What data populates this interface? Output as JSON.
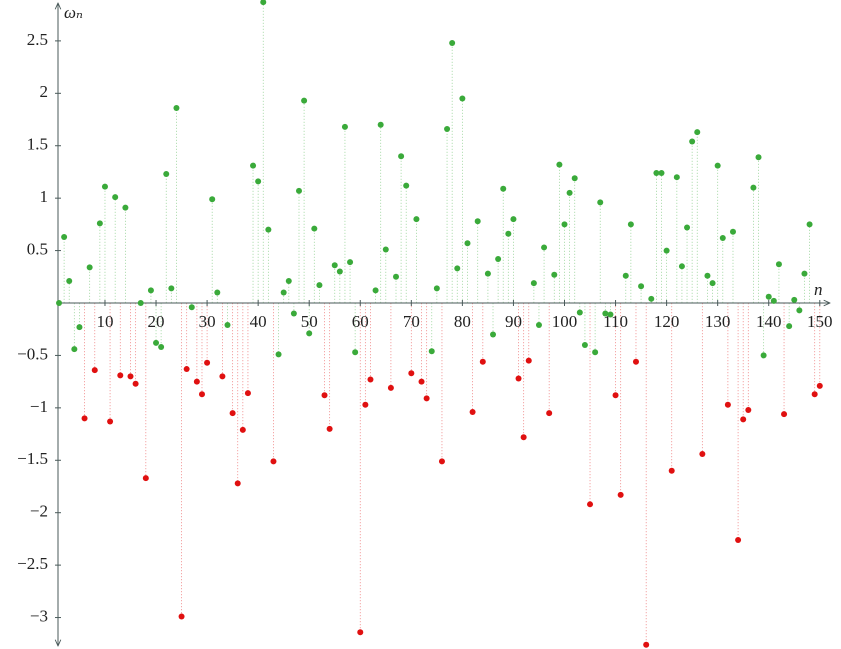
{
  "chart_data": {
    "type": "stem-scatter",
    "x_label": "n",
    "y_label": "ωₙ",
    "xlim": [
      0.8,
      152
    ],
    "ylim": [
      -3.3,
      2.89
    ],
    "xticks": [
      10,
      20,
      30,
      40,
      50,
      60,
      70,
      80,
      90,
      100,
      110,
      120,
      130,
      140,
      150
    ],
    "yticks": [
      {
        "value": -3,
        "label": "−3"
      },
      {
        "value": -2.5,
        "label": "−2.5"
      },
      {
        "value": -2,
        "label": "−2"
      },
      {
        "value": -1.5,
        "label": "−1.5"
      },
      {
        "value": -1,
        "label": "−1"
      },
      {
        "value": -0.5,
        "label": "−0.5"
      },
      0.5,
      1,
      1.5,
      2,
      2.5
    ],
    "x": [
      1,
      2,
      3,
      4,
      5,
      6,
      7,
      8,
      9,
      10,
      11,
      12,
      13,
      14,
      15,
      16,
      17,
      18,
      19,
      20,
      21,
      22,
      23,
      24,
      25,
      26,
      27,
      28,
      29,
      30,
      31,
      32,
      33,
      34,
      35,
      36,
      37,
      38,
      39,
      40,
      41,
      42,
      43,
      44,
      45,
      46,
      47,
      48,
      49,
      50,
      51,
      52,
      53,
      54,
      55,
      56,
      57,
      58,
      59,
      60,
      61,
      62,
      63,
      64,
      65,
      66,
      67,
      68,
      69,
      70,
      71,
      72,
      73,
      74,
      75,
      76,
      77,
      78,
      79,
      80,
      81,
      82,
      83,
      84,
      85,
      86,
      87,
      88,
      89,
      90,
      91,
      92,
      93,
      94,
      95,
      96,
      97,
      98,
      99,
      100,
      101,
      102,
      103,
      104,
      105,
      106,
      107,
      108,
      109,
      110,
      111,
      112,
      113,
      114,
      115,
      116,
      117,
      118,
      119,
      120,
      121,
      122,
      123,
      124,
      125,
      126,
      127,
      128,
      129,
      130,
      131,
      132,
      133,
      134,
      135,
      136,
      137,
      138,
      139,
      140,
      141,
      142,
      143,
      144,
      145,
      146,
      147,
      148,
      149,
      150
    ],
    "series": [
      {
        "color": "#3aaa3a",
        "values": [
          0,
          0.63,
          0.21,
          -0.44,
          -0.23,
          null,
          0.34,
          null,
          0.76,
          1.11,
          null,
          1.01,
          null,
          0.91,
          null,
          null,
          0,
          null,
          0.12,
          -0.38,
          -0.42,
          1.23,
          0.14,
          1.86,
          null,
          null,
          -0.04,
          null,
          null,
          null,
          0.99,
          0.1,
          null,
          -0.21,
          null,
          null,
          null,
          null,
          1.31,
          1.16,
          2.87,
          0.7,
          null,
          -0.49,
          0.1,
          0.21,
          -0.1,
          1.07,
          1.93,
          -0.29,
          0.71,
          0.17,
          null,
          null,
          0.36,
          0.3,
          1.68,
          0.39,
          -0.47,
          null,
          null,
          null,
          0.12,
          1.7,
          0.51,
          null,
          0.25,
          1.4,
          1.12,
          null,
          0.8,
          null,
          null,
          -0.46,
          0.14,
          null,
          1.66,
          2.48,
          0.33,
          1.95,
          0.57,
          null,
          0.78,
          null,
          0.28,
          -0.3,
          0.42,
          1.09,
          0.66,
          0.8,
          null,
          null,
          null,
          0.19,
          -0.21,
          0.53,
          null,
          0.27,
          1.32,
          0.75,
          1.05,
          1.19,
          -0.09,
          -0.4,
          null,
          -0.47,
          0.96,
          -0.1,
          -0.11,
          null,
          null,
          0.26,
          0.75,
          null,
          0.16,
          null,
          0.04,
          1.24,
          1.24,
          0.5,
          null,
          1.2,
          0.35,
          0.72,
          1.54,
          1.63,
          null,
          0.26,
          0.19,
          1.31,
          0.62,
          null,
          0.68,
          null,
          null,
          null,
          1.1,
          1.39,
          -0.5,
          0.06,
          0.02,
          0.37,
          null,
          -0.22,
          0.03,
          -0.07,
          0.28,
          0.75,
          null,
          null
        ]
      },
      {
        "color": "#e01010",
        "values": [
          null,
          null,
          null,
          null,
          null,
          -1.1,
          null,
          -0.64,
          null,
          null,
          -1.13,
          null,
          -0.69,
          null,
          -0.7,
          -0.77,
          null,
          -1.67,
          null,
          null,
          null,
          null,
          null,
          null,
          -2.99,
          -0.63,
          null,
          -0.75,
          -0.87,
          -0.57,
          null,
          null,
          -0.7,
          null,
          -1.05,
          -1.72,
          -1.21,
          -0.86,
          null,
          null,
          null,
          null,
          -1.51,
          null,
          null,
          null,
          null,
          null,
          null,
          null,
          null,
          null,
          -0.88,
          -1.2,
          null,
          null,
          null,
          null,
          null,
          -3.14,
          -0.97,
          -0.73,
          null,
          null,
          null,
          -0.81,
          null,
          null,
          null,
          -0.67,
          null,
          -0.75,
          -0.91,
          null,
          null,
          -1.51,
          null,
          null,
          null,
          null,
          null,
          -1.04,
          null,
          -0.56,
          null,
          null,
          null,
          null,
          null,
          null,
          -0.72,
          -1.28,
          -0.55,
          null,
          null,
          null,
          -1.05,
          null,
          null,
          null,
          null,
          null,
          null,
          null,
          -1.92,
          null,
          null,
          null,
          null,
          -0.88,
          -1.83,
          null,
          null,
          -0.56,
          null,
          -3.26,
          null,
          null,
          null,
          null,
          -1.6,
          null,
          null,
          null,
          null,
          null,
          -1.44,
          null,
          null,
          null,
          null,
          -0.97,
          null,
          -2.26,
          -1.11,
          -1.02,
          null,
          null,
          null,
          null,
          null,
          null,
          -1.06,
          null,
          null,
          null,
          null,
          null,
          -0.87,
          -0.79
        ]
      }
    ]
  }
}
